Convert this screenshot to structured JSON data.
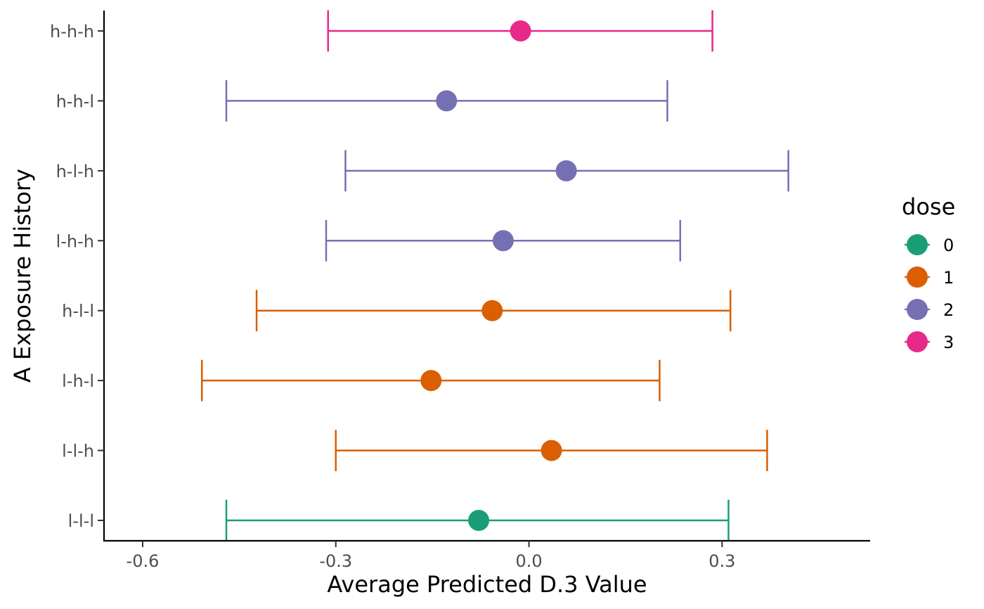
{
  "chart_data": {
    "type": "scatter",
    "subtype": "point-with-errorbars",
    "xlabel": "Average Predicted D.3 Value",
    "ylabel": "A Exposure History",
    "xlim": [
      -0.66,
      0.53
    ],
    "xticks": [
      -0.6,
      -0.3,
      0.0,
      0.3
    ],
    "xtick_labels": [
      "-0.6",
      "-0.3",
      "0.0",
      "0.3"
    ],
    "categories": [
      "l-l-l",
      "l-l-h",
      "l-h-l",
      "h-l-l",
      "l-h-h",
      "h-l-h",
      "h-h-l",
      "h-h-h"
    ],
    "points": [
      {
        "history": "l-l-l",
        "dose": "0",
        "estimate": -0.078,
        "lower": -0.47,
        "upper": 0.31
      },
      {
        "history": "l-l-h",
        "dose": "1",
        "estimate": 0.035,
        "lower": -0.3,
        "upper": 0.37
      },
      {
        "history": "l-h-l",
        "dose": "1",
        "estimate": -0.152,
        "lower": -0.508,
        "upper": 0.203
      },
      {
        "history": "h-l-l",
        "dose": "1",
        "estimate": -0.057,
        "lower": -0.423,
        "upper": 0.313
      },
      {
        "history": "l-h-h",
        "dose": "2",
        "estimate": -0.04,
        "lower": -0.315,
        "upper": 0.235
      },
      {
        "history": "h-l-h",
        "dose": "2",
        "estimate": 0.058,
        "lower": -0.285,
        "upper": 0.403
      },
      {
        "history": "h-h-l",
        "dose": "2",
        "estimate": -0.128,
        "lower": -0.47,
        "upper": 0.215
      },
      {
        "history": "h-h-h",
        "dose": "3",
        "estimate": -0.013,
        "lower": -0.312,
        "upper": 0.285
      }
    ],
    "legend": {
      "title": "dose",
      "placement": "right",
      "items": [
        {
          "label": "0",
          "color": "#1b9e77"
        },
        {
          "label": "1",
          "color": "#d95f02"
        },
        {
          "label": "2",
          "color": "#7570b3"
        },
        {
          "label": "3",
          "color": "#e7298a"
        }
      ]
    },
    "grid": false
  }
}
